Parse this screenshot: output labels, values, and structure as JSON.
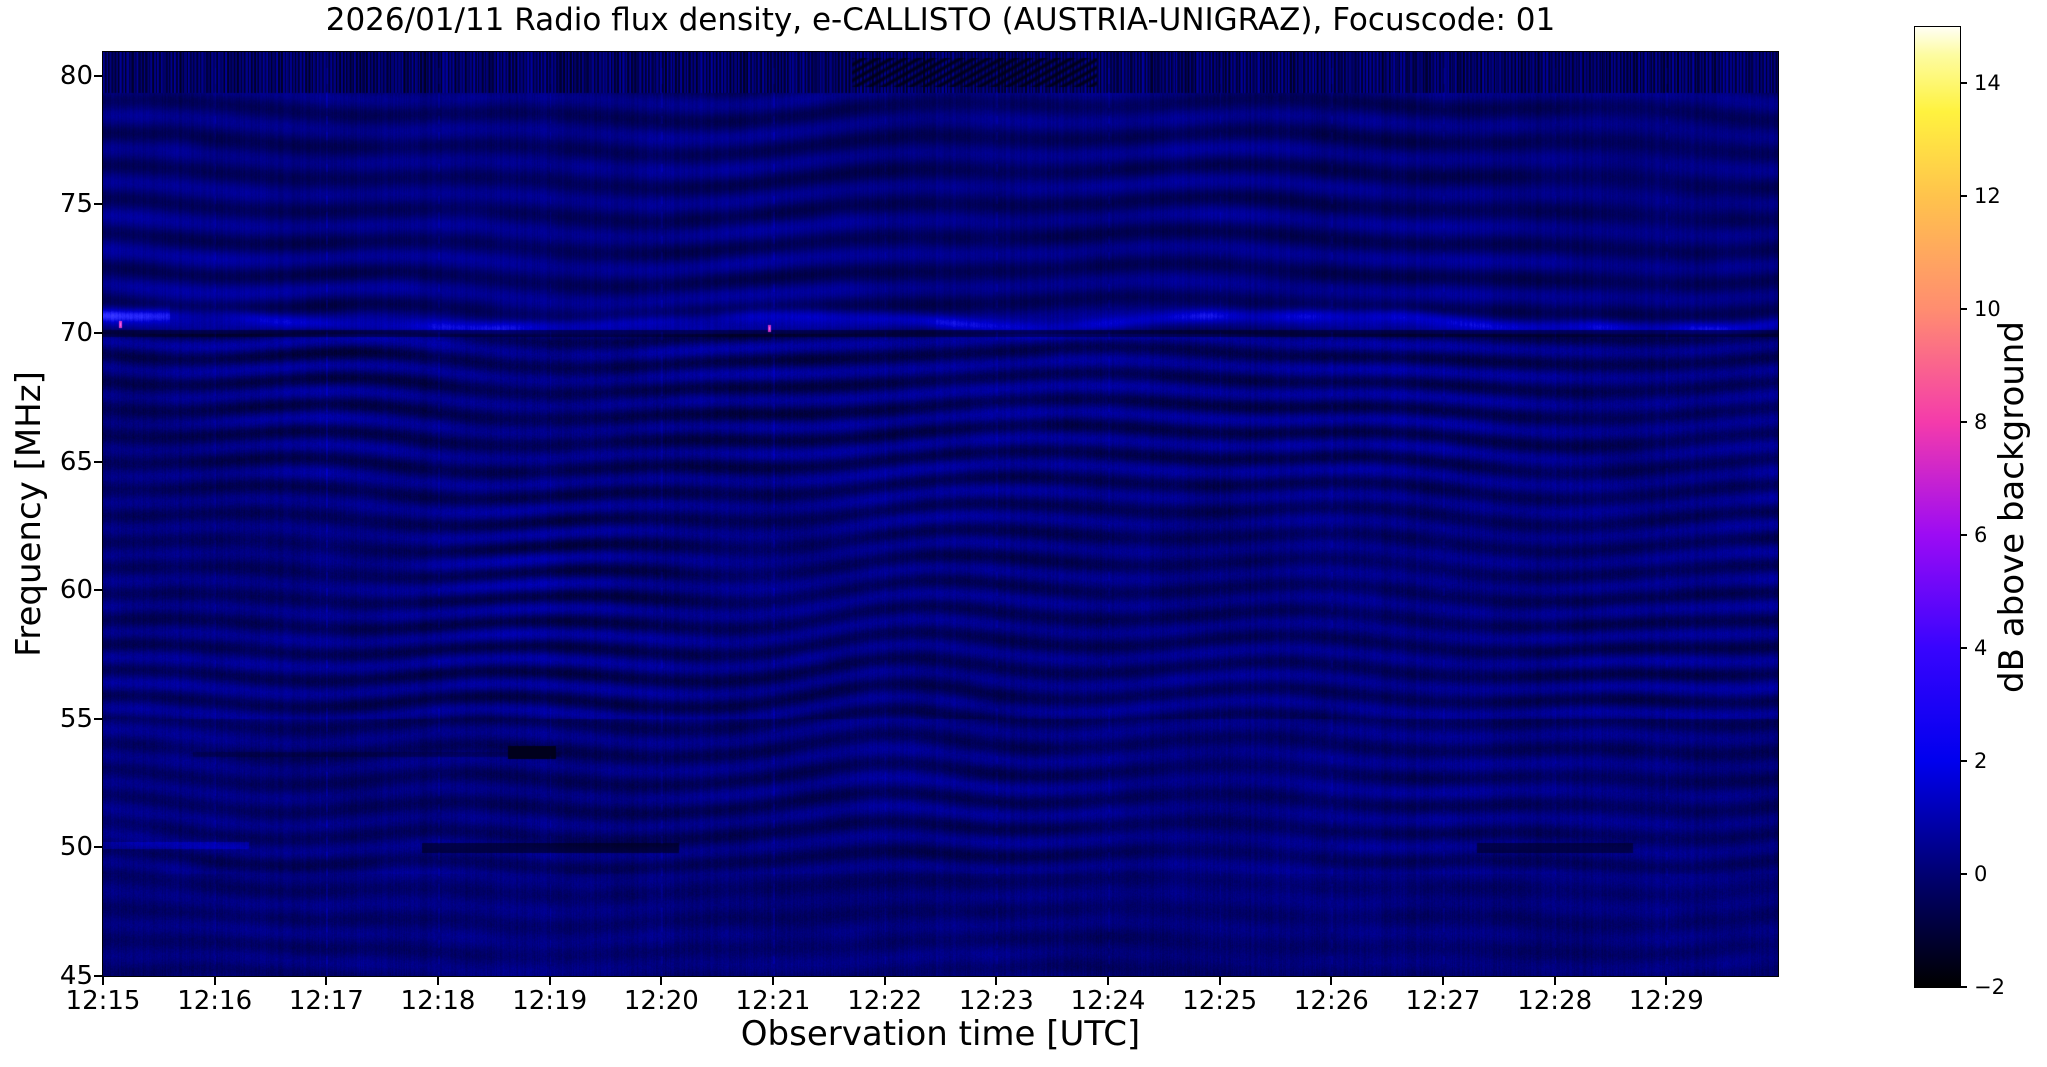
{
  "chart_data": {
    "type": "heatmap",
    "subtype": "radio-spectrogram",
    "title": "2026/01/11  Radio flux density, e-CALLISTO (AUSTRIA-UNIGRAZ), Focuscode: 01",
    "xlabel": "Observation time [UTC]",
    "ylabel": "Frequency [MHz]",
    "x_range_utc": [
      "12:15",
      "12:30"
    ],
    "x_tick_labels": [
      "12:15",
      "12:16",
      "12:17",
      "12:18",
      "12:19",
      "12:20",
      "12:21",
      "12:22",
      "12:23",
      "12:24",
      "12:25",
      "12:26",
      "12:27",
      "12:28",
      "12:29"
    ],
    "y_range_mhz": [
      45.0,
      80.93
    ],
    "y_tick_values": [
      80,
      75,
      70,
      65,
      60,
      55,
      50,
      45
    ],
    "grid": false,
    "legend": "colorbar-right",
    "colorbar": {
      "label": "dB above background",
      "range": [
        -2,
        15
      ],
      "tick_values": [
        14,
        12,
        10,
        8,
        6,
        4,
        2,
        0,
        -2
      ],
      "tick_labels": [
        "14",
        "12",
        "10",
        "8",
        "6",
        "4",
        "2",
        "0",
        "−2"
      ],
      "colormap": "gnuplot2-like (black-blue-violet-pink-orange-yellow-white)",
      "stops": [
        {
          "value": -2,
          "color": "#000000"
        },
        {
          "value": 0,
          "color": "#000072"
        },
        {
          "value": 2,
          "color": "#0000ee"
        },
        {
          "value": 4,
          "color": "#3804fe"
        },
        {
          "value": 6,
          "color": "#9c0bf4"
        },
        {
          "value": 8,
          "color": "#f43bab"
        },
        {
          "value": 10,
          "color": "#ff8d70"
        },
        {
          "value": 12,
          "color": "#ffc34c"
        },
        {
          "value": 13.5,
          "color": "#fff23f"
        },
        {
          "value": 14.5,
          "color": "#fdfca0"
        },
        {
          "value": 15,
          "color": "#fffff4"
        }
      ]
    },
    "background_signal": {
      "mean_level_db": 0.5,
      "appearance": "dark blue field with horizontal wavy interference-fringe bands and fine vertical striations; fringe spacing ~1 MHz below 70 MHz, ~1.3 MHz above"
    },
    "features": [
      {
        "kind": "zebra-band",
        "label": "fine vertical fringe band at top edge",
        "f0": 79.35,
        "f1": 80.93,
        "t0": 0,
        "t1": 15,
        "dark_t0": 6.7,
        "dark_t1": 8.9
      },
      {
        "kind": "bright-fringe",
        "label": "bright wavy fringe near 70.4 MHz",
        "freq": 70.45,
        "t0": 0,
        "t1": 15
      },
      {
        "kind": "dark-line",
        "label": "dark separator at 70.0 MHz",
        "freq": 70.0,
        "t0": 0,
        "t1": 15,
        "factor": 0.5,
        "halfwidth": 0.12
      },
      {
        "kind": "dark-line",
        "label": "faint dark line near 53.6 MHz",
        "freq": 53.62,
        "t0": 0.8,
        "t1": 4.1,
        "factor": 0.72,
        "halfwidth": 0.1
      },
      {
        "kind": "black-dash",
        "label": "black absorption dash ~53.7 MHz, 12:18.6-12:19.0",
        "f0": 53.45,
        "f1": 53.95,
        "t0": 3.62,
        "t1": 4.05
      },
      {
        "kind": "dark-streak",
        "label": "dark streak at 50 MHz, 12:17.8-12:20.1",
        "freq": 50.0,
        "t0": 2.85,
        "t1": 5.15,
        "factor": 0.4,
        "halfwidth": 0.18
      },
      {
        "kind": "dark-streak",
        "label": "dark streak at 50 MHz, 12:27.3-12:28.7",
        "freq": 50.0,
        "t0": 12.3,
        "t1": 13.7,
        "factor": 0.45,
        "halfwidth": 0.18
      },
      {
        "kind": "bright-line",
        "label": "bright trace at 50.1 MHz, 12:15-12:16.3",
        "freq": 50.08,
        "t0": 0,
        "t1": 1.3,
        "boost": 0.25,
        "halfwidth": 0.14
      },
      {
        "kind": "minute-lines",
        "label": "faint dashed vertical lines at minute boundaries",
        "every_min": 1
      },
      {
        "kind": "rfi-speck",
        "label": "magenta RFI speck",
        "t": 0.15,
        "freq": 70.35,
        "color": "#e040d0"
      },
      {
        "kind": "rfi-speck",
        "label": "magenta RFI speck",
        "t": 5.96,
        "freq": 70.2,
        "color": "#d035c8"
      }
    ]
  }
}
